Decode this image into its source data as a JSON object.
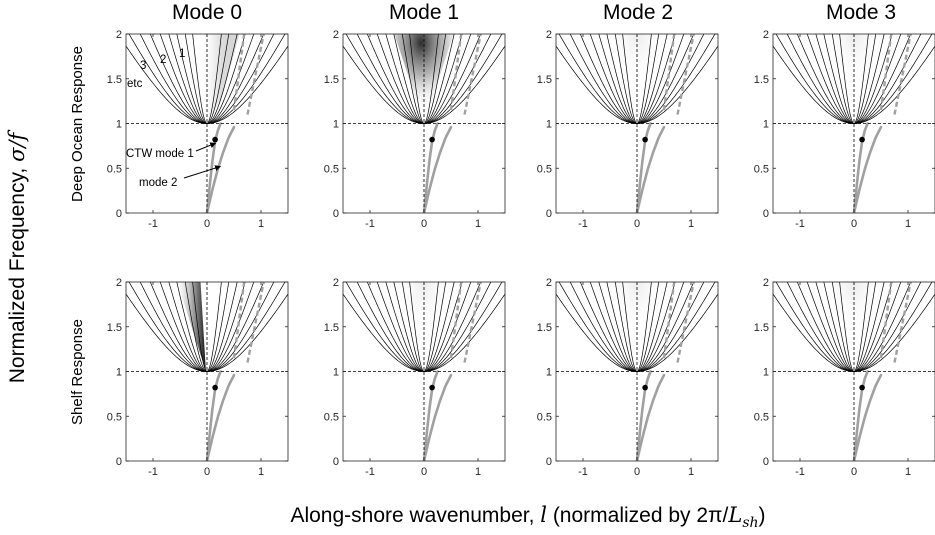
{
  "figure": {
    "ylabel_main": "Normalized Frequency, ",
    "ylabel_sym": "σ/f",
    "xlabel_main": "Along-shore wavenumber, ",
    "xlabel_sym": "l",
    "xlabel_rest": " (normalized by 2π/",
    "xlabel_L": "L",
    "xlabel_sub": "sh",
    "xlabel_end": ")",
    "rows": [
      "Deep Ocean Response",
      "Shelf Response"
    ],
    "columns": [
      "Mode 0",
      "Mode 1",
      "Mode 2",
      "Mode 3"
    ],
    "annotations": {
      "n1": "1",
      "n2": "2",
      "n3": "3",
      "etc": "etc",
      "ctw1": "CTW mode 1",
      "ctw2": "mode 2"
    },
    "colors": {
      "curves": "#000000",
      "ctw": "#a0a0a0",
      "shade": "#000000",
      "dot": "#000000"
    }
  },
  "chart_data": {
    "type": "line",
    "layout": "2x4 small multiples",
    "xlim": [
      -1.5,
      1.5
    ],
    "ylim": [
      0,
      2
    ],
    "xticks": [
      -1,
      0,
      1
    ],
    "yticks": [
      0,
      0.5,
      1,
      1.5,
      2
    ],
    "xtick_labels": [
      "-1",
      "0",
      "1"
    ],
    "ytick_labels": [
      "0",
      "0.5",
      "1",
      "1.5",
      "2"
    ],
    "reference_lines": {
      "y": 1,
      "x": 0,
      "style": "dashed"
    },
    "inertia_gravity_branches": {
      "description": "sigma/f = sqrt(1 + (c_n * l)^2), symmetric in l",
      "c_n": [
        6.5,
        4.3,
        3.1,
        2.45,
        2.0,
        1.65,
        1.4,
        1.2,
        1.05
      ]
    },
    "ctw_modes": [
      {
        "name": "CTW mode 1",
        "l": [
          0,
          0.03,
          0.06,
          0.1,
          0.15,
          0.2,
          0.25
        ],
        "sigma_over_f": [
          0,
          0.18,
          0.36,
          0.58,
          0.8,
          0.92,
          1.0
        ]
      },
      {
        "name": "mode 2",
        "l": [
          0,
          0.05,
          0.1,
          0.2,
          0.3,
          0.4,
          0.5
        ],
        "sigma_over_f": [
          0,
          0.13,
          0.26,
          0.49,
          0.68,
          0.84,
          0.96
        ]
      }
    ],
    "ctw_dashed": [
      {
        "l": [
          0.5,
          0.6,
          0.7
        ],
        "sigma_over_f": [
          1.15,
          1.6,
          2.05
        ]
      },
      {
        "l": [
          0.75,
          0.9,
          1.05
        ],
        "sigma_over_f": [
          1.1,
          1.55,
          2.0
        ]
      }
    ],
    "forcing_point": {
      "l": 0.15,
      "sigma_over_f": 0.82
    },
    "panels": [
      {
        "row": "Deep Ocean Response",
        "column": "Mode 0",
        "shade": "mode0-deep"
      },
      {
        "row": "Deep Ocean Response",
        "column": "Mode 1",
        "shade": "mode1-deep"
      },
      {
        "row": "Deep Ocean Response",
        "column": "Mode 2",
        "shade": "faint"
      },
      {
        "row": "Deep Ocean Response",
        "column": "Mode 3",
        "shade": "faint"
      },
      {
        "row": "Shelf Response",
        "column": "Mode 0",
        "shade": "mode0-shelf"
      },
      {
        "row": "Shelf Response",
        "column": "Mode 1",
        "shade": "faint"
      },
      {
        "row": "Shelf Response",
        "column": "Mode 2",
        "shade": "faint"
      },
      {
        "row": "Shelf Response",
        "column": "Mode 3",
        "shade": "faint"
      }
    ]
  }
}
